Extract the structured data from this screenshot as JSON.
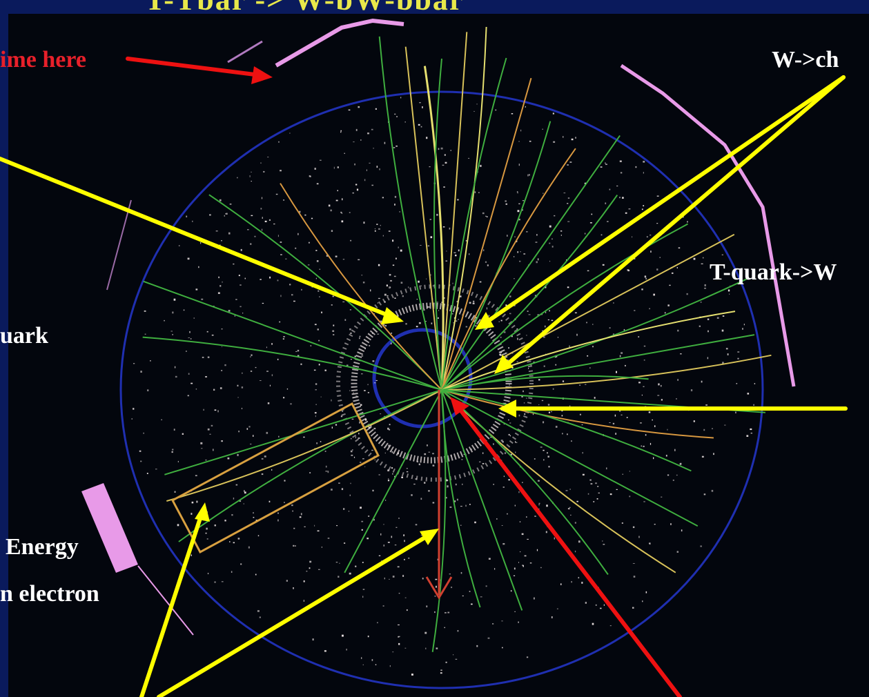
{
  "title": "T-Tbar -> W-bW-bbar",
  "labels": {
    "time_here": "ime here",
    "w_charm": "W->ch",
    "t_quark": "T-quark->W",
    "quark": "uark",
    "energy": "Energy",
    "electron": "n electron"
  },
  "colors": {
    "background_frame": "#0a1a5c",
    "detector_background": "#03060d",
    "arrow_yellow": "#ffff00",
    "arrow_red": "#ee1111",
    "track_green": "#3fae3f",
    "track_yellow": "#d8c25a",
    "track_orange": "#d89840",
    "ring_blue": "#1f2fb0",
    "calorimeter_pink": "#e89ae8"
  }
}
